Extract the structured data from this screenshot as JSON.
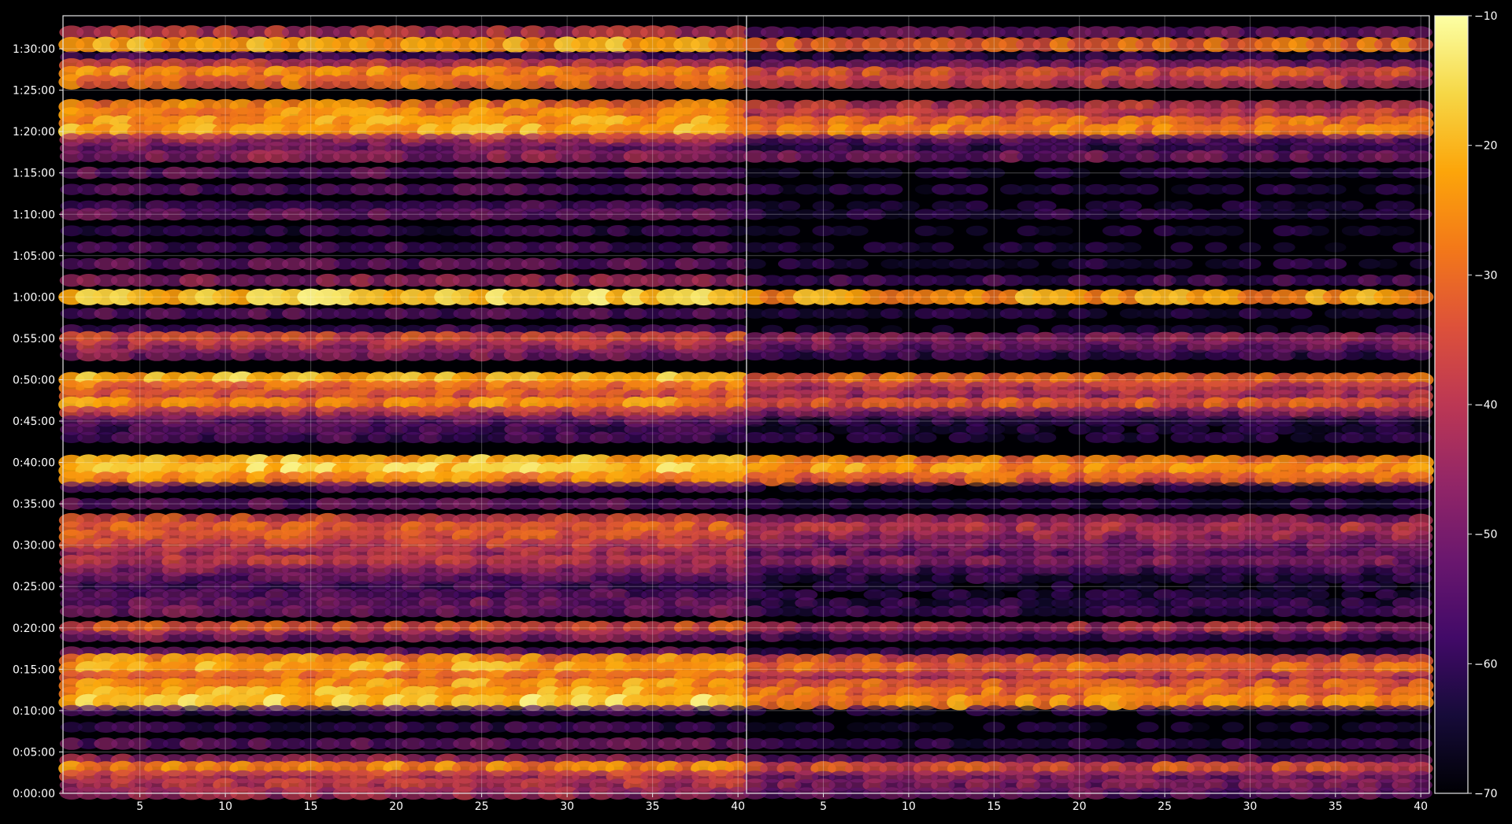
{
  "chart_data": {
    "type": "heatmap",
    "title": "",
    "xlabel": "",
    "ylabel": "",
    "colormap": "inferno",
    "grid": true,
    "legend": "colorbar-right",
    "colorbar": {
      "range": [
        -70,
        -10
      ],
      "ticks": [
        -10,
        -20,
        -30,
        -40,
        -50,
        -60,
        -70
      ],
      "tick_labels": [
        "−10",
        "−20",
        "−30",
        "−40",
        "−50",
        "−60",
        "−70"
      ]
    },
    "yaxis": {
      "unit": "time",
      "range_seconds": [
        0,
        5640
      ],
      "ticks_seconds": [
        0,
        300,
        600,
        900,
        1200,
        1500,
        1800,
        2100,
        2400,
        2700,
        3000,
        3300,
        3600,
        3900,
        4200,
        4500,
        4800,
        5100,
        5400
      ],
      "tick_labels": [
        "0:00:00",
        "0:05:00",
        "0:10:00",
        "0:15:00",
        "0:20:00",
        "0:25:00",
        "0:30:00",
        "0:35:00",
        "0:40:00",
        "0:45:00",
        "0:50:00",
        "0:55:00",
        "1:00:00",
        "1:05:00",
        "1:10:00",
        "1:15:00",
        "1:20:00",
        "1:25:00",
        "1:30:00"
      ]
    },
    "panels": [
      {
        "name": "",
        "x_range": [
          1,
          40
        ],
        "x_ticks": [
          5,
          10,
          15,
          20,
          25,
          30,
          35,
          40
        ],
        "x_tick_labels": [
          "5",
          "10",
          "15",
          "20",
          "25",
          "30",
          "35",
          "40"
        ],
        "bands": [
          {
            "t": 5520,
            "v": -40
          },
          {
            "t": 5430,
            "v": -22
          },
          {
            "t": 5340,
            "v": -55
          },
          {
            "t": 5280,
            "v": -38
          },
          {
            "t": 5220,
            "v": -26
          },
          {
            "t": 5160,
            "v": -30
          },
          {
            "t": 4980,
            "v": -28
          },
          {
            "t": 4920,
            "v": -26
          },
          {
            "t": 4860,
            "v": -24
          },
          {
            "t": 4800,
            "v": -22
          },
          {
            "t": 4740,
            "v": -42
          },
          {
            "t": 4680,
            "v": -50
          },
          {
            "t": 4620,
            "v": -46
          },
          {
            "t": 4500,
            "v": -52
          },
          {
            "t": 4380,
            "v": -54
          },
          {
            "t": 4260,
            "v": -56
          },
          {
            "t": 4200,
            "v": -50
          },
          {
            "t": 4080,
            "v": -60
          },
          {
            "t": 3960,
            "v": -56
          },
          {
            "t": 3840,
            "v": -52
          },
          {
            "t": 3720,
            "v": -45
          },
          {
            "t": 3600,
            "v": -18
          },
          {
            "t": 3480,
            "v": -54
          },
          {
            "t": 3360,
            "v": -56
          },
          {
            "t": 3300,
            "v": -36
          },
          {
            "t": 3240,
            "v": -42
          },
          {
            "t": 3180,
            "v": -48
          },
          {
            "t": 3000,
            "v": -20
          },
          {
            "t": 2940,
            "v": -30
          },
          {
            "t": 2880,
            "v": -34
          },
          {
            "t": 2820,
            "v": -26
          },
          {
            "t": 2760,
            "v": -40
          },
          {
            "t": 2700,
            "v": -52
          },
          {
            "t": 2640,
            "v": -56
          },
          {
            "t": 2580,
            "v": -56
          },
          {
            "t": 2400,
            "v": -20
          },
          {
            "t": 2340,
            "v": -18
          },
          {
            "t": 2280,
            "v": -26
          },
          {
            "t": 2220,
            "v": -56
          },
          {
            "t": 2100,
            "v": -52
          },
          {
            "t": 1980,
            "v": -36
          },
          {
            "t": 1920,
            "v": -32
          },
          {
            "t": 1860,
            "v": -34
          },
          {
            "t": 1800,
            "v": -38
          },
          {
            "t": 1740,
            "v": -42
          },
          {
            "t": 1680,
            "v": -40
          },
          {
            "t": 1620,
            "v": -46
          },
          {
            "t": 1560,
            "v": -52
          },
          {
            "t": 1500,
            "v": -56
          },
          {
            "t": 1440,
            "v": -54
          },
          {
            "t": 1380,
            "v": -50
          },
          {
            "t": 1320,
            "v": -50
          },
          {
            "t": 1200,
            "v": -34
          },
          {
            "t": 1140,
            "v": -48
          },
          {
            "t": 1020,
            "v": -52
          },
          {
            "t": 960,
            "v": -26
          },
          {
            "t": 900,
            "v": -22
          },
          {
            "t": 840,
            "v": -30
          },
          {
            "t": 780,
            "v": -24
          },
          {
            "t": 720,
            "v": -22
          },
          {
            "t": 660,
            "v": -18
          },
          {
            "t": 600,
            "v": -58
          },
          {
            "t": 480,
            "v": -58
          },
          {
            "t": 360,
            "v": -52
          },
          {
            "t": 240,
            "v": -44
          },
          {
            "t": 180,
            "v": -26
          },
          {
            "t": 120,
            "v": -40
          },
          {
            "t": 60,
            "v": -40
          },
          {
            "t": 0,
            "v": -44
          }
        ]
      },
      {
        "name": "",
        "x_range": [
          1,
          40
        ],
        "x_ticks": [
          5,
          10,
          15,
          20,
          25,
          30,
          35,
          40
        ],
        "x_tick_labels": [
          "5",
          "10",
          "15",
          "20",
          "25",
          "30",
          "35",
          "40"
        ],
        "bands": [
          {
            "t": 5520,
            "v": -52
          },
          {
            "t": 5430,
            "v": -30
          },
          {
            "t": 5340,
            "v": -60
          },
          {
            "t": 5280,
            "v": -48
          },
          {
            "t": 5220,
            "v": -34
          },
          {
            "t": 5160,
            "v": -40
          },
          {
            "t": 4980,
            "v": -40
          },
          {
            "t": 4920,
            "v": -38
          },
          {
            "t": 4860,
            "v": -30
          },
          {
            "t": 4800,
            "v": -28
          },
          {
            "t": 4740,
            "v": -52
          },
          {
            "t": 4680,
            "v": -58
          },
          {
            "t": 4620,
            "v": -50
          },
          {
            "t": 4500,
            "v": -62
          },
          {
            "t": 4380,
            "v": -62
          },
          {
            "t": 4260,
            "v": -64
          },
          {
            "t": 4200,
            "v": -60
          },
          {
            "t": 4080,
            "v": -64
          },
          {
            "t": 3960,
            "v": -64
          },
          {
            "t": 3840,
            "v": -62
          },
          {
            "t": 3720,
            "v": -56
          },
          {
            "t": 3600,
            "v": -24
          },
          {
            "t": 3480,
            "v": -62
          },
          {
            "t": 3360,
            "v": -64
          },
          {
            "t": 3300,
            "v": -46
          },
          {
            "t": 3240,
            "v": -50
          },
          {
            "t": 3180,
            "v": -58
          },
          {
            "t": 3000,
            "v": -30
          },
          {
            "t": 2940,
            "v": -40
          },
          {
            "t": 2880,
            "v": -42
          },
          {
            "t": 2820,
            "v": -32
          },
          {
            "t": 2760,
            "v": -48
          },
          {
            "t": 2700,
            "v": -60
          },
          {
            "t": 2640,
            "v": -62
          },
          {
            "t": 2580,
            "v": -62
          },
          {
            "t": 2400,
            "v": -28
          },
          {
            "t": 2340,
            "v": -24
          },
          {
            "t": 2280,
            "v": -32
          },
          {
            "t": 2220,
            "v": -62
          },
          {
            "t": 2100,
            "v": -60
          },
          {
            "t": 1980,
            "v": -46
          },
          {
            "t": 1920,
            "v": -40
          },
          {
            "t": 1860,
            "v": -44
          },
          {
            "t": 1800,
            "v": -48
          },
          {
            "t": 1740,
            "v": -52
          },
          {
            "t": 1680,
            "v": -48
          },
          {
            "t": 1620,
            "v": -56
          },
          {
            "t": 1560,
            "v": -60
          },
          {
            "t": 1500,
            "v": -64
          },
          {
            "t": 1440,
            "v": -62
          },
          {
            "t": 1380,
            "v": -60
          },
          {
            "t": 1320,
            "v": -58
          },
          {
            "t": 1200,
            "v": -42
          },
          {
            "t": 1140,
            "v": -56
          },
          {
            "t": 1020,
            "v": -60
          },
          {
            "t": 960,
            "v": -34
          },
          {
            "t": 900,
            "v": -30
          },
          {
            "t": 840,
            "v": -40
          },
          {
            "t": 780,
            "v": -32
          },
          {
            "t": 720,
            "v": -30
          },
          {
            "t": 660,
            "v": -26
          },
          {
            "t": 600,
            "v": -62
          },
          {
            "t": 480,
            "v": -64
          },
          {
            "t": 360,
            "v": -60
          },
          {
            "t": 240,
            "v": -52
          },
          {
            "t": 180,
            "v": -34
          },
          {
            "t": 120,
            "v": -48
          },
          {
            "t": 60,
            "v": -48
          },
          {
            "t": 0,
            "v": -52
          }
        ]
      }
    ]
  }
}
